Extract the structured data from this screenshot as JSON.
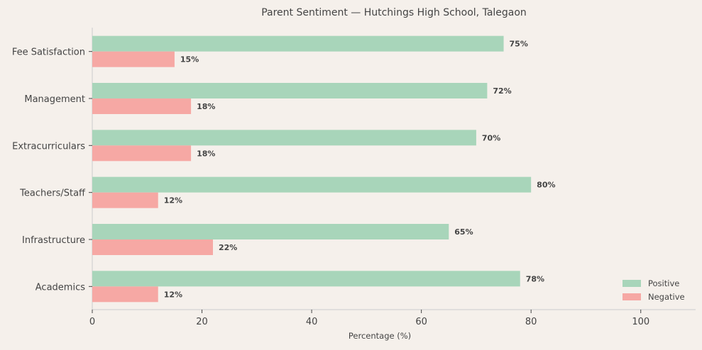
{
  "chart_data": {
    "type": "bar",
    "orientation": "horizontal",
    "title": "Parent Sentiment — Hutchings High School, Talegaon",
    "xlabel": "Percentage (%)",
    "ylabel": "",
    "xlim": [
      0,
      110
    ],
    "xticks": [
      0,
      20,
      40,
      60,
      80,
      100
    ],
    "categories": [
      "Fee Satisfaction",
      "Management",
      "Extracurriculars",
      "Teachers/Staff",
      "Infrastructure",
      "Academics"
    ],
    "series": [
      {
        "name": "Positive",
        "color": "#a8d5ba",
        "values": [
          75,
          72,
          70,
          80,
          65,
          78
        ]
      },
      {
        "name": "Negative",
        "color": "#f6a8a4",
        "values": [
          15,
          18,
          18,
          12,
          22,
          12
        ]
      }
    ],
    "value_label_suffix": "%",
    "grid": false,
    "legend": "bottom-right"
  }
}
